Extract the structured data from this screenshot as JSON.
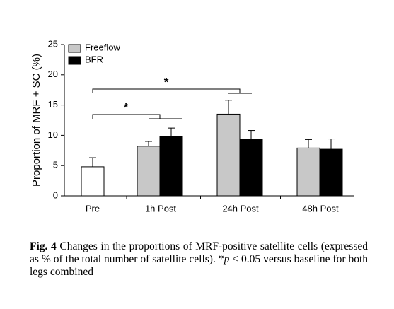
{
  "chart_data": {
    "type": "bar",
    "ylabel": "Proportion of MRF + SC (%)",
    "categories": [
      "Pre",
      "1h Post",
      "24h Post",
      "48h Post"
    ],
    "series": [
      {
        "color": "#ffffff",
        "values": [
          4.8,
          null,
          null,
          null
        ],
        "errors": [
          1.5,
          null,
          null,
          null
        ]
      },
      {
        "name": "Freeflow",
        "color": "#c8c8c8",
        "values": [
          null,
          8.2,
          13.5,
          7.9
        ],
        "errors": [
          null,
          0.8,
          2.3,
          1.4
        ]
      },
      {
        "name": "BFR",
        "color": "#000000",
        "values": [
          null,
          9.8,
          9.4,
          7.7
        ],
        "errors": [
          null,
          1.4,
          1.4,
          1.7
        ]
      }
    ],
    "ylim": [
      0,
      25
    ],
    "yticks": [
      0,
      5,
      10,
      15,
      20,
      25
    ],
    "annotations": [
      {
        "text": "*"
      },
      {
        "text": "*"
      }
    ],
    "legend": "upper left"
  },
  "caption": {
    "label": "Fig. 4",
    "text": " Changes in the proportions of MRF-positive satellite cells (expressed as % of the total number of satellite cells). *",
    "italic": "p",
    "rest": " < 0.05 versus baseline for both legs combined"
  }
}
